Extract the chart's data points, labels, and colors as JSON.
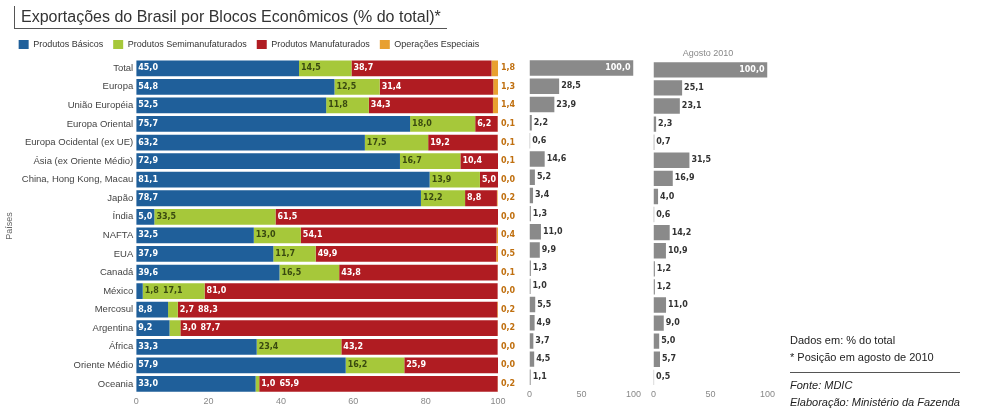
{
  "chart_data": [
    {
      "type": "bar",
      "orientation": "horizontal",
      "stacked": true,
      "title": "Exportações do Brasil por Blocos Econômicos (% do total)*",
      "ylabel": "Países",
      "categories": [
        "Total",
        "Europa",
        "União Européia",
        "Europa Oriental",
        "Europa Ocidental (ex UE)",
        "Ásia (ex Oriente Médio)",
        "China, Hong Kong, Macau",
        "Japão",
        "Índia",
        "NAFTA",
        "EUA",
        "Canadá",
        "México",
        "Mercosul",
        "Argentina",
        "África",
        "Oriente Médio",
        "Oceania"
      ],
      "series": [
        {
          "name": "Produtos Básicos",
          "color": "#1f5f9a",
          "values": [
            45.0,
            54.8,
            52.5,
            75.7,
            63.2,
            72.9,
            81.1,
            78.7,
            5.0,
            32.5,
            37.9,
            39.6,
            1.8,
            8.8,
            9.2,
            33.3,
            57.9,
            33.0
          ],
          "value_labels": [
            "45,0",
            "54,8",
            "52,5",
            "75,7",
            "63,2",
            "72,9",
            "81,1",
            "78,7",
            "5,0",
            "32,5",
            "37,9",
            "39,6",
            "1,8",
            "8,8",
            "9,2",
            "33,3",
            "57,9",
            "33,0"
          ]
        },
        {
          "name": "Produtos Semimanufaturados",
          "color": "#a6c83a",
          "values": [
            14.5,
            12.5,
            11.8,
            18.0,
            17.5,
            16.7,
            13.9,
            12.2,
            33.5,
            13.0,
            11.7,
            16.5,
            17.1,
            2.7,
            3.0,
            23.4,
            16.2,
            1.0
          ],
          "value_labels": [
            "14,5",
            "12,5",
            "11,8",
            "18,0",
            "17,5",
            "16,7",
            "13,9",
            "12,2",
            "33,5",
            "13,0",
            "11,7",
            "16,5",
            "17,1",
            "2,7",
            "3,0",
            "23,4",
            "16,2",
            "1,0"
          ]
        },
        {
          "name": "Produtos Manufaturados",
          "color": "#b01c22",
          "values": [
            38.7,
            31.4,
            34.3,
            6.2,
            19.2,
            10.4,
            5.0,
            8.8,
            61.5,
            54.1,
            49.9,
            43.8,
            81.0,
            88.3,
            87.7,
            43.2,
            25.9,
            65.9
          ],
          "value_labels": [
            "38,7",
            "31,4",
            "34,3",
            "6,2",
            "19,2",
            "10,4",
            "5,0",
            "8,8",
            "61,5",
            "54,1",
            "49,9",
            "43,8",
            "81,0",
            "88,3",
            "87,7",
            "43,2",
            "25,9",
            "65,9"
          ]
        },
        {
          "name": "Operações Especiais",
          "color": "#e8a030",
          "values": [
            1.8,
            1.3,
            1.4,
            0.1,
            0.1,
            0.1,
            0.0,
            0.2,
            0.0,
            0.4,
            0.5,
            0.1,
            0.0,
            0.2,
            0.2,
            0.0,
            0.0,
            0.2
          ],
          "value_labels": [
            "1,8",
            "1,3",
            "1,4",
            "0,1",
            "0,1",
            "0,1",
            "0,0",
            "0,2",
            "0,0",
            "0,4",
            "0,5",
            "0,1",
            "0,0",
            "0,2",
            "0,2",
            "0,0",
            "0,0",
            "0,2"
          ]
        }
      ],
      "xlim": [
        0,
        100
      ],
      "xticks": [
        0,
        20,
        40,
        60,
        80,
        100
      ],
      "legend": "top",
      "annotations": [
        "Dados em: % do total",
        "* Posição em agosto de 2010",
        "Fonte: MDIC",
        "Elaboração: Ministério da Fazenda"
      ]
    },
    {
      "type": "bar",
      "orientation": "horizontal",
      "categories": [
        null,
        null,
        null,
        null,
        null,
        null,
        null,
        null,
        null,
        null,
        null,
        null,
        null,
        null,
        null,
        null,
        null,
        null
      ],
      "values": [
        100.0,
        28.5,
        23.9,
        2.2,
        0.6,
        14.6,
        5.2,
        3.4,
        1.3,
        11.0,
        9.9,
        1.3,
        1.0,
        5.5,
        4.9,
        3.7,
        4.5,
        1.1
      ],
      "value_labels": [
        "100,0",
        "28,5",
        "23,9",
        "2,2",
        "0,6",
        "14,6",
        "5,2",
        "3,4",
        "1,3",
        "11,0",
        "9,9",
        "1,3",
        "1,0",
        "5,5",
        "4,9",
        "3,7",
        "4,5",
        "1,1"
      ],
      "color": "#8a8a8a",
      "xlim": [
        0,
        100
      ],
      "xticks": [
        0,
        50,
        100
      ],
      "tick_labels": "x"
    },
    {
      "type": "bar",
      "orientation": "horizontal",
      "title": "Agosto 2010",
      "categories": [
        null,
        null,
        null,
        null,
        null,
        null,
        null,
        null,
        null,
        null,
        null,
        null,
        null,
        null,
        null,
        null,
        null,
        null
      ],
      "values": [
        100.0,
        25.1,
        23.1,
        2.3,
        0.7,
        31.5,
        16.9,
        4.0,
        0.6,
        14.2,
        10.9,
        1.2,
        1.2,
        11.0,
        9.0,
        5.0,
        5.7,
        0.5
      ],
      "value_labels": [
        "100,0",
        "25,1",
        "23,1",
        "2,3",
        "0,7",
        "31,5",
        "16,9",
        "4,0",
        "0,6",
        "14,2",
        "10,9",
        "1,2",
        "1,2",
        "11,0",
        "9,0",
        "5,0",
        "5,7",
        "0,5"
      ],
      "color": "#8a8a8a",
      "xlim": [
        0,
        100
      ],
      "xticks": [
        0,
        50,
        100
      ],
      "tick_labels": "x"
    }
  ]
}
